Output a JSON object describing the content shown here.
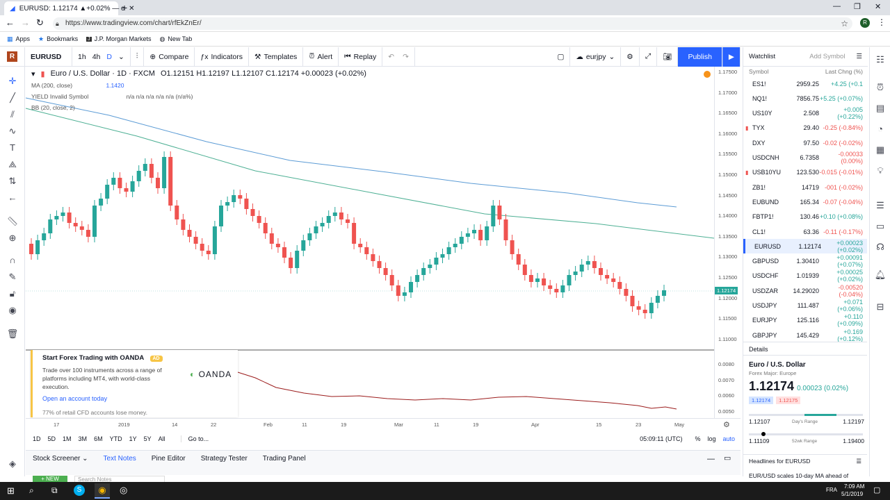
{
  "browser": {
    "tab_title": "EURUSD: 1.12174 ▲+0.02% — c",
    "url": "https://www.tradingview.com/chart/rfEkZnEr/",
    "bookmarks": [
      "Apps",
      "Bookmarks",
      "J.P. Morgan Markets",
      "New Tab"
    ]
  },
  "toolbar": {
    "symbol": "EURUSD",
    "intervals": [
      "1h",
      "4h",
      "D"
    ],
    "compare": "Compare",
    "indicators": "Indicators",
    "templates": "Templates",
    "alert": "Alert",
    "replay": "Replay",
    "layout_name": "eurjpy",
    "publish": "Publish"
  },
  "legend": {
    "title": "Euro / U.S. Dollar · 1D · FXCM",
    "ohlc": "O1.12151  H1.12197  L1.12107  C1.12174  +0.00023 (+0.02%)",
    "ma": "MA (200, close)",
    "ma_value": "1.1420",
    "yield": "YIELD Invalid Symbol",
    "yield_values": "n/a  n/a  n/a  n/a    n/a (n/a%)",
    "bb": "BB (20, close, 2)"
  },
  "price_axis": [
    "1.17500",
    "1.17000",
    "1.16500",
    "1.16000",
    "1.15500",
    "1.15000",
    "1.14500",
    "1.14000",
    "1.13500",
    "1.13000",
    "1.12500",
    "1.12000",
    "1.11500",
    "1.11000"
  ],
  "price_axis_current": "1.12174",
  "sub_axis": [
    "0.0080",
    "0.0070",
    "0.0060",
    "0.0050"
  ],
  "time_axis": [
    "17",
    "2019",
    "14",
    "22",
    "Feb",
    "11",
    "19",
    "Mar",
    "11",
    "19",
    "Apr",
    "15",
    "23",
    "May"
  ],
  "range_bar": {
    "ranges": [
      "1D",
      "5D",
      "1M",
      "3M",
      "6M",
      "YTD",
      "1Y",
      "5Y",
      "All"
    ],
    "goto": "Go to...",
    "clock": "05:09:11 (UTC)",
    "pct": "%",
    "log": "log",
    "auto": "auto"
  },
  "bottom_tabs": [
    "Stock Screener",
    "Text Notes",
    "Pine Editor",
    "Strategy Tester",
    "Trading Panel"
  ],
  "bottom_extra": {
    "new_btn": "+ NEW",
    "search": "Search Notes"
  },
  "ad": {
    "title": "Start Forex Trading with OANDA",
    "badge": "AD",
    "body": "Trade over 100 instruments across a range of platforms including MT4, with world-class execution.",
    "link": "Open an account today",
    "footer": "77% of retail CFD accounts lose money.",
    "brand": "OANDA"
  },
  "watchlist": {
    "title": "Watchlist",
    "add": "Add Symbol",
    "headers": [
      "Symbol",
      "Last",
      "Chng (%)"
    ],
    "rows": [
      {
        "sym": "ES1!",
        "last": "2959.25",
        "chg": "+4.25 (+0.1",
        "dir": "up"
      },
      {
        "sym": "NQ1!",
        "last": "7856.75",
        "chg": "+5.25 (+0.07%)",
        "dir": "up"
      },
      {
        "sym": "US10Y",
        "last": "2.508",
        "chg": "+0.005 (+0.22%)",
        "dir": "up"
      },
      {
        "sym": "TYX",
        "last": "29.40",
        "chg": "-0.25 (-0.84%)",
        "dir": "dn"
      },
      {
        "sym": "DXY",
        "last": "97.50",
        "chg": "-0.02 (-0.02%)",
        "dir": "dn"
      },
      {
        "sym": "USDCNH",
        "last": "6.7358",
        "chg": "-0.00033 (0.00%)",
        "dir": "dn"
      },
      {
        "sym": "USB10YU",
        "last": "123.530",
        "chg": "-0.015 (-0.01%)",
        "dir": "dn"
      },
      {
        "sym": "ZB1!",
        "last": "14719",
        "chg": "-001 (-0.02%)",
        "dir": "dn"
      },
      {
        "sym": "EUBUND",
        "last": "165.34",
        "chg": "-0.07 (-0.04%)",
        "dir": "dn"
      },
      {
        "sym": "FBTP1!",
        "last": "130.46",
        "chg": "+0.10 (+0.08%)",
        "dir": "up"
      },
      {
        "sym": "CL1!",
        "last": "63.36",
        "chg": "-0.11 (-0.17%)",
        "dir": "dn"
      },
      {
        "sym": "EURUSD",
        "last": "1.12174",
        "chg": "+0.00023 (+0.02%)",
        "dir": "up"
      },
      {
        "sym": "GBPUSD",
        "last": "1.30410",
        "chg": "+0.00091 (+0.07%)",
        "dir": "up"
      },
      {
        "sym": "USDCHF",
        "last": "1.01939",
        "chg": "+0.00025 (+0.02%)",
        "dir": "up"
      },
      {
        "sym": "USDZAR",
        "last": "14.29020",
        "chg": "-0.00520 (-0.04%)",
        "dir": "dn"
      },
      {
        "sym": "USDJPY",
        "last": "111.487",
        "chg": "+0.071 (+0.06%)",
        "dir": "up"
      },
      {
        "sym": "EURJPY",
        "last": "125.116",
        "chg": "+0.110 (+0.09%)",
        "dir": "up"
      },
      {
        "sym": "GBPJPY",
        "last": "145.429",
        "chg": "+0.169 (+0.12%)",
        "dir": "up"
      }
    ]
  },
  "details": {
    "header": "Details",
    "name": "Euro / U.S. Dollar",
    "category": "Forex Major: Europe",
    "price": "1.12174",
    "change": "0.00023 (0.02%)",
    "bid": "1.12174",
    "ask": "1.12175",
    "day_low": "1.12107",
    "day_label": "Day's Range",
    "day_high": "1.12197",
    "wk_low": "1.11109",
    "wk_label": "52wk Range",
    "wk_high": "1.19400",
    "headlines": "Headlines for EURUSD",
    "headline": "EUR/USD scales 10-day MA ahead of"
  },
  "taskbar": {
    "time": "7:09 AM",
    "date": "5/1/2019",
    "lang": "FRA"
  },
  "colors": {
    "up": "#26a69a",
    "down": "#ef5350",
    "accent": "#2962ff"
  }
}
